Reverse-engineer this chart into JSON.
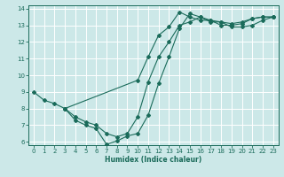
{
  "xlabel": "Humidex (Indice chaleur)",
  "bg_color": "#cce8e8",
  "grid_color": "#ffffff",
  "line_color": "#1a6b5a",
  "xlim": [
    -0.5,
    23.5
  ],
  "ylim": [
    5.8,
    14.2
  ],
  "xticks": [
    0,
    1,
    2,
    3,
    4,
    5,
    6,
    7,
    8,
    9,
    10,
    11,
    12,
    13,
    14,
    15,
    16,
    17,
    18,
    19,
    20,
    21,
    22,
    23
  ],
  "yticks": [
    6,
    7,
    8,
    9,
    10,
    11,
    12,
    13,
    14
  ],
  "line1_x": [
    0,
    1,
    2,
    3,
    10,
    11,
    12,
    13,
    14,
    15,
    16,
    17,
    18,
    19,
    20,
    21,
    22,
    23
  ],
  "line1_y": [
    9.0,
    8.5,
    8.3,
    8.0,
    9.7,
    11.1,
    12.4,
    12.9,
    13.8,
    13.5,
    13.3,
    13.3,
    13.0,
    13.0,
    13.1,
    13.4,
    13.5,
    13.5
  ],
  "line2_x": [
    3,
    4,
    5,
    6,
    7,
    8,
    9,
    10,
    11,
    12,
    13,
    14,
    15,
    16,
    17,
    18,
    19,
    20,
    21,
    22,
    23
  ],
  "line2_y": [
    8.0,
    7.5,
    7.2,
    7.0,
    6.5,
    6.3,
    6.5,
    7.5,
    9.6,
    11.1,
    12.0,
    13.0,
    13.2,
    13.5,
    13.3,
    13.2,
    13.1,
    13.2,
    13.4,
    13.5,
    13.5
  ],
  "line3_x": [
    3,
    4,
    5,
    6,
    7,
    8,
    9,
    10,
    11,
    12,
    13,
    14,
    15,
    16,
    17,
    18,
    19,
    20,
    21,
    22,
    23
  ],
  "line3_y": [
    8.0,
    7.3,
    7.0,
    6.8,
    5.85,
    6.05,
    6.35,
    6.5,
    7.6,
    9.5,
    11.1,
    12.8,
    13.7,
    13.5,
    13.2,
    13.2,
    12.9,
    12.9,
    13.0,
    13.3,
    13.5
  ]
}
